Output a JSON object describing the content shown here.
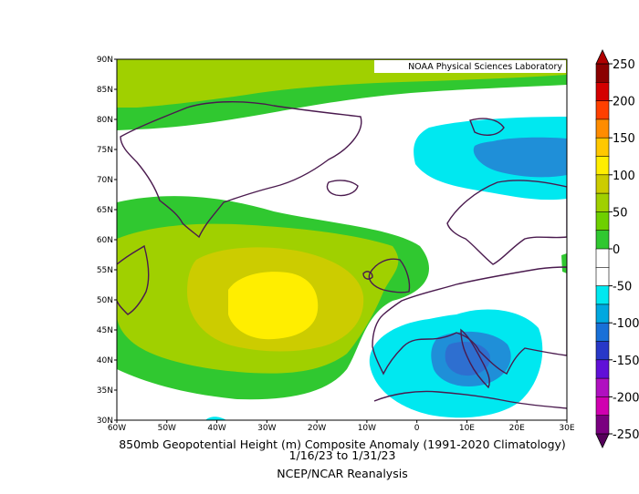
{
  "title": {
    "line1": "850mb Geopotential Height (m) Composite Anomaly (1991-2020 Climatology)",
    "line2": "1/16/23   to 1/31/23",
    "line3": "NCEP/NCAR Reanalysis"
  },
  "credit": "NOAA Physical Sciences Laboratory",
  "chart_data": {
    "type": "heatmap",
    "variable": "850mb Geopotential Height Anomaly",
    "units": "m",
    "xlim": [
      -60,
      30
    ],
    "ylim": [
      30,
      90
    ],
    "x_ticks": [
      "60W",
      "50W",
      "40W",
      "30W",
      "20W",
      "10W",
      "0",
      "10E",
      "20E",
      "30E"
    ],
    "y_ticks": [
      "90N",
      "85N",
      "80N",
      "75N",
      "70N",
      "65N",
      "60N",
      "55N",
      "50N",
      "45N",
      "40N",
      "35N",
      "30N"
    ],
    "colorbar": {
      "labels": [
        "250",
        "200",
        "150",
        "100",
        "50",
        "0",
        "-50",
        "-100",
        "-150",
        "-200",
        "-250"
      ],
      "colors": [
        "#8b0000",
        "#d40000",
        "#ff4000",
        "#ff8c00",
        "#ffc800",
        "#ffee00",
        "#cccc00",
        "#a0d000",
        "#6ed000",
        "#30c830",
        "#ffffff",
        "#ffffff",
        "#00e8f0",
        "#00a8e0",
        "#1870d8",
        "#2838c8",
        "#6010d8",
        "#b010c0",
        "#d000b0",
        "#7a0080"
      ]
    },
    "anomalies": [
      {
        "feature": "north-atlantic-ridge",
        "center": [
          -28,
          50
        ],
        "max_level": 100
      },
      {
        "feature": "greenland-north-ridge",
        "center": [
          -40,
          85
        ],
        "max_level": 50
      },
      {
        "feature": "barents-trough",
        "center": [
          15,
          74
        ],
        "min_level": -100
      },
      {
        "feature": "mediterranean-trough",
        "center": [
          10,
          42
        ],
        "min_level": -100
      }
    ]
  }
}
